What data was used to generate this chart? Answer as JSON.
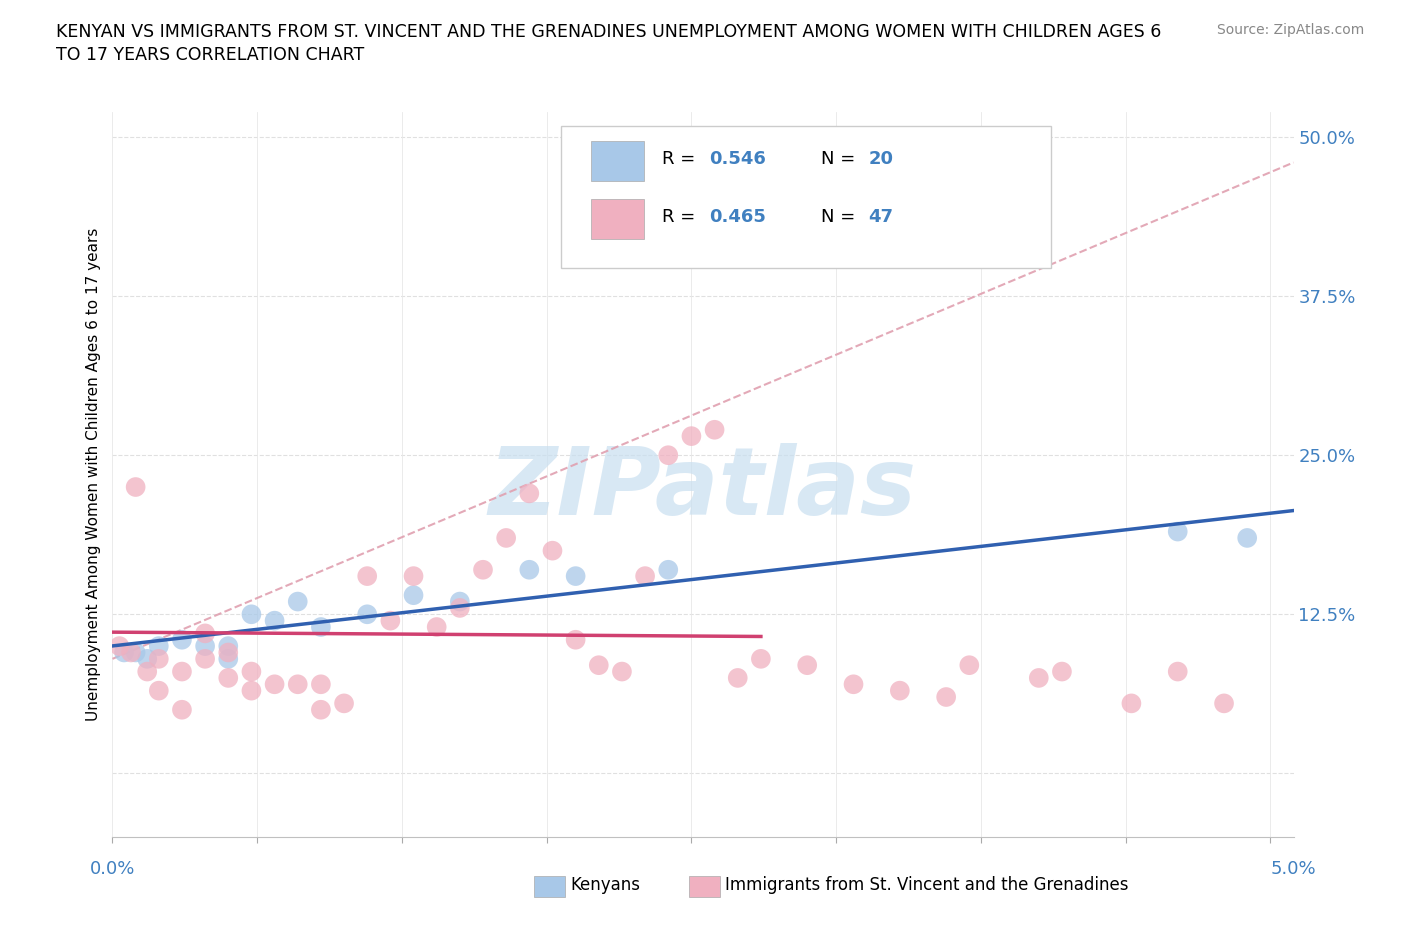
{
  "title_line1": "KENYAN VS IMMIGRANTS FROM ST. VINCENT AND THE GRENADINES UNEMPLOYMENT AMONG WOMEN WITH CHILDREN AGES 6",
  "title_line2": "TO 17 YEARS CORRELATION CHART",
  "source": "Source: ZipAtlas.com",
  "ylabel": "Unemployment Among Women with Children Ages 6 to 17 years",
  "kenyan_R": "0.546",
  "kenyan_N": "20",
  "svg_R": "0.465",
  "svg_N": "47",
  "kenyan_dot_color": "#a8c8e8",
  "svg_dot_color": "#f0b0c0",
  "kenyan_line_color": "#3060b0",
  "svg_line_color": "#d04070",
  "dash_line_color": "#e0a0b0",
  "watermark_color": "#c8dff0",
  "text_blue": "#4080c0",
  "legend_label_1": "Kenyans",
  "legend_label_2": "Immigrants from St. Vincent and the Grenadines",
  "xlim": [
    0.0,
    0.051
  ],
  "ylim": [
    -0.05,
    0.52
  ],
  "ytick_vals": [
    0.0,
    0.125,
    0.25,
    0.375,
    0.5
  ],
  "ytick_labels": [
    "",
    "12.5%",
    "25.0%",
    "37.5%",
    "50.0%"
  ],
  "xtick_vals": [
    0.0,
    0.00625,
    0.0125,
    0.01875,
    0.025,
    0.03125,
    0.0375,
    0.04375,
    0.05
  ],
  "kenyan_x": [
    0.0005,
    0.001,
    0.0015,
    0.002,
    0.003,
    0.004,
    0.005,
    0.005,
    0.006,
    0.007,
    0.008,
    0.009,
    0.011,
    0.013,
    0.015,
    0.018,
    0.02,
    0.024,
    0.046,
    0.049
  ],
  "kenyan_y": [
    0.095,
    0.095,
    0.09,
    0.1,
    0.105,
    0.1,
    0.1,
    0.09,
    0.125,
    0.12,
    0.135,
    0.115,
    0.125,
    0.14,
    0.135,
    0.16,
    0.155,
    0.16,
    0.19,
    0.185
  ],
  "svg_x": [
    0.0003,
    0.0008,
    0.001,
    0.0015,
    0.002,
    0.002,
    0.003,
    0.003,
    0.004,
    0.004,
    0.005,
    0.005,
    0.006,
    0.006,
    0.007,
    0.008,
    0.009,
    0.009,
    0.01,
    0.011,
    0.012,
    0.013,
    0.014,
    0.015,
    0.016,
    0.017,
    0.018,
    0.019,
    0.02,
    0.021,
    0.022,
    0.023,
    0.024,
    0.025,
    0.026,
    0.027,
    0.028,
    0.03,
    0.032,
    0.034,
    0.036,
    0.037,
    0.04,
    0.041,
    0.044,
    0.046,
    0.048
  ],
  "svg_y": [
    0.1,
    0.095,
    0.225,
    0.08,
    0.065,
    0.09,
    0.05,
    0.08,
    0.09,
    0.11,
    0.095,
    0.075,
    0.08,
    0.065,
    0.07,
    0.07,
    0.05,
    0.07,
    0.055,
    0.155,
    0.12,
    0.155,
    0.115,
    0.13,
    0.16,
    0.185,
    0.22,
    0.175,
    0.105,
    0.085,
    0.08,
    0.155,
    0.25,
    0.265,
    0.27,
    0.075,
    0.09,
    0.085,
    0.07,
    0.065,
    0.06,
    0.085,
    0.075,
    0.08,
    0.055,
    0.08,
    0.055
  ]
}
